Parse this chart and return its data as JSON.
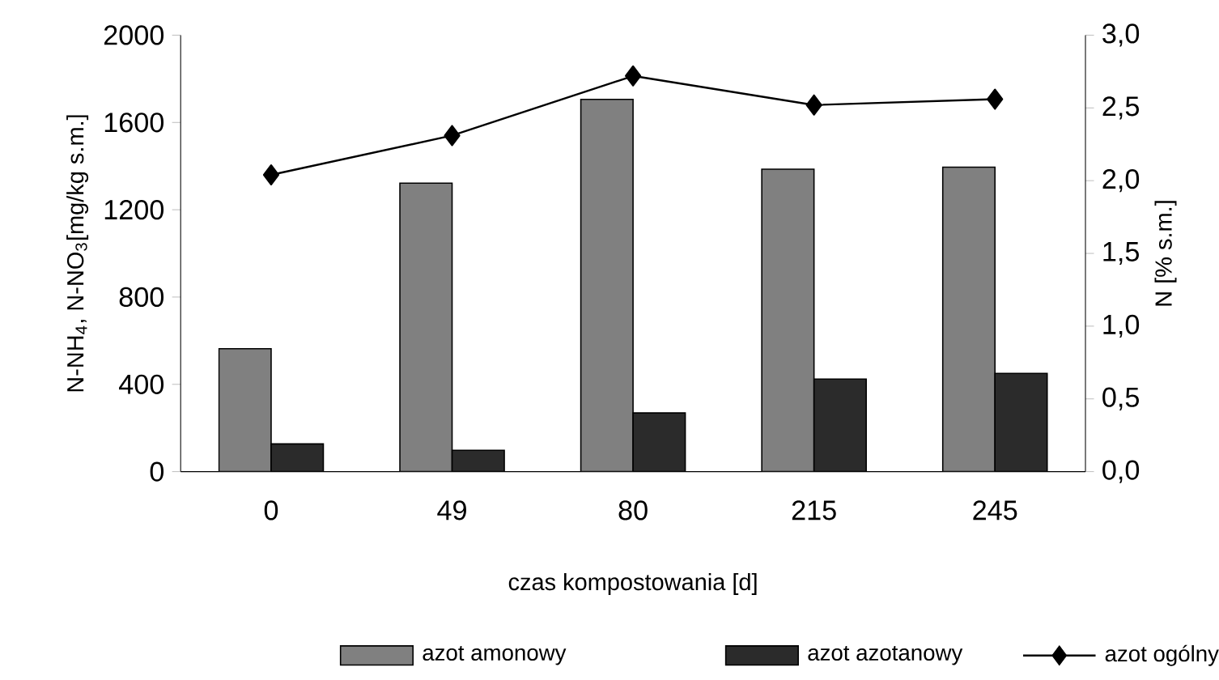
{
  "chart_data": {
    "type": "bar",
    "xlabel": "czas kompostowania [d]",
    "ylabel": "N-NH$_{4}$, N-NO$_{3}$[mg/kg s.m.]",
    "y2label": "N [% s.m.]",
    "categories": [
      "0",
      "49",
      "80",
      "215",
      "245"
    ],
    "series": [
      {
        "name": "azot amonowy",
        "color": "#808080",
        "values": [
          563,
          1322,
          1706,
          1386,
          1395
        ]
      },
      {
        "name": "azot azotanowy",
        "color": "#2b2b2b",
        "values": [
          127,
          98,
          269,
          424,
          450
        ]
      },
      {
        "name": "azot ogólny",
        "type": "line",
        "axis": "y2",
        "color": "#000000",
        "marker": "diamond",
        "values": [
          2.04,
          2.31,
          2.72,
          2.52,
          2.56
        ]
      }
    ],
    "ylim": [
      0,
      2000
    ],
    "yticks": [
      0,
      400,
      800,
      1200,
      1600,
      2000
    ],
    "y2lim": [
      0,
      3.0
    ],
    "y2ticks": [
      {
        "value": 0,
        "label": "0,0"
      },
      {
        "value": 0.5,
        "label": "0,5"
      },
      {
        "value": 1.0,
        "label": "1,0"
      },
      {
        "value": 1.5,
        "label": "1,5"
      },
      {
        "value": 2.0,
        "label": "2,0"
      },
      {
        "value": 2.5,
        "label": "2,5"
      },
      {
        "value": 3.0,
        "label": "3,0"
      }
    ],
    "grid": false,
    "legend": "bottom"
  }
}
